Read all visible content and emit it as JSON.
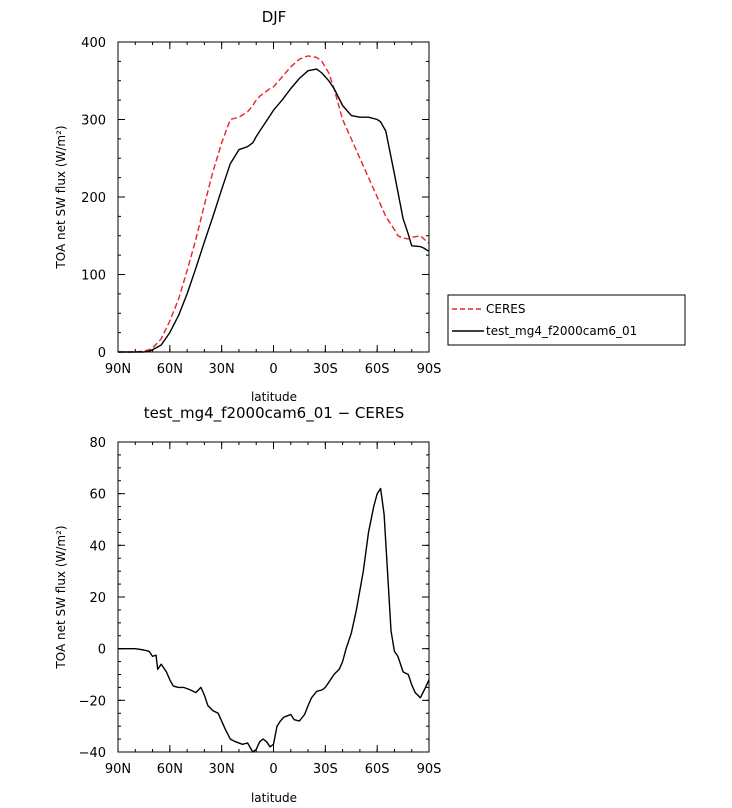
{
  "chart_data": [
    {
      "type": "line",
      "title": "DJF",
      "xlabel": "latitude",
      "ylabel": "TOA net SW flux (W/m²)",
      "xlim": [
        90,
        -90
      ],
      "ylim": [
        0,
        400
      ],
      "x_ticks": [
        90,
        60,
        30,
        0,
        -30,
        -60,
        -90
      ],
      "x_tick_labels": [
        "90N",
        "60N",
        "30N",
        "0",
        "30S",
        "60S",
        "90S"
      ],
      "y_ticks": [
        0,
        100,
        200,
        300,
        400
      ],
      "legend": {
        "placement": "right"
      },
      "series": [
        {
          "name": "CERES",
          "color": "#e8232a",
          "dash": "dashed",
          "x": [
            90,
            80,
            75,
            72,
            70,
            65,
            60,
            55,
            50,
            45,
            40,
            35,
            30,
            25,
            20,
            15,
            12,
            10,
            8,
            5,
            2,
            0,
            -5,
            -10,
            -15,
            -20,
            -25,
            -28,
            -32,
            -35,
            -40,
            -45,
            -50,
            -55,
            -60,
            -65,
            -70,
            -72,
            -75,
            -78,
            -80,
            -85,
            -87,
            -90
          ],
          "y": [
            0,
            0,
            1,
            3,
            5,
            17,
            40,
            68,
            105,
            145,
            190,
            233,
            270,
            300,
            303,
            310,
            318,
            325,
            330,
            335,
            340,
            342,
            355,
            368,
            378,
            382,
            380,
            375,
            360,
            340,
            300,
            275,
            250,
            225,
            200,
            175,
            158,
            150,
            147,
            146,
            148,
            150,
            146,
            140
          ]
        },
        {
          "name": "test_mg4_f2000cam6_01",
          "color": "#000000",
          "dash": "solid",
          "x": [
            90,
            80,
            75,
            72,
            70,
            65,
            60,
            55,
            50,
            45,
            40,
            35,
            30,
            25,
            20,
            15,
            12,
            10,
            8,
            5,
            2,
            0,
            -5,
            -10,
            -15,
            -20,
            -25,
            -28,
            -32,
            -35,
            -40,
            -45,
            -50,
            -55,
            -60,
            -62,
            -65,
            -70,
            -75,
            -78,
            -80,
            -85,
            -87,
            -90
          ],
          "y": [
            0,
            0,
            0,
            1,
            3,
            9,
            25,
            47,
            75,
            108,
            142,
            175,
            210,
            243,
            261,
            265,
            270,
            278,
            285,
            295,
            305,
            312,
            325,
            340,
            353,
            363,
            365,
            360,
            350,
            340,
            318,
            305,
            303,
            303,
            300,
            297,
            285,
            230,
            172,
            152,
            137,
            136,
            134,
            130
          ]
        }
      ]
    },
    {
      "type": "line",
      "title": "test_mg4_f2000cam6_01 − CERES",
      "xlabel": "latitude",
      "ylabel": "TOA net SW flux (W/m²)",
      "xlim": [
        90,
        -90
      ],
      "ylim": [
        -40,
        80
      ],
      "x_ticks": [
        90,
        60,
        30,
        0,
        -30,
        -60,
        -90
      ],
      "x_tick_labels": [
        "90N",
        "60N",
        "30N",
        "0",
        "30S",
        "60S",
        "90S"
      ],
      "y_ticks": [
        -40,
        -20,
        0,
        20,
        40,
        60,
        80
      ],
      "series": [
        {
          "color": "#000000",
          "dash": "solid",
          "x": [
            90,
            80,
            75,
            72,
            70,
            68,
            67,
            65,
            62,
            60,
            58,
            55,
            52,
            48,
            45,
            42,
            40,
            38,
            35,
            32,
            28,
            25,
            22,
            18,
            15,
            12,
            10,
            8,
            6,
            4,
            2,
            0,
            -2,
            -4,
            -6,
            -8,
            -10,
            -12,
            -15,
            -18,
            -20,
            -22,
            -25,
            -28,
            -30,
            -32,
            -35,
            -38,
            -40,
            -42,
            -45,
            -48,
            -52,
            -55,
            -58,
            -60,
            -62,
            -64,
            -66,
            -68,
            -70,
            -72,
            -75,
            -78,
            -80,
            -82,
            -85,
            -88,
            -90
          ],
          "y": [
            0,
            0,
            -0.5,
            -1,
            -3,
            -2.5,
            -8,
            -6,
            -9,
            -12,
            -14.5,
            -15,
            -15,
            -16,
            -17,
            -15,
            -18,
            -22,
            -24,
            -25,
            -31,
            -35,
            -36,
            -37,
            -36.5,
            -40,
            -39,
            -36,
            -35,
            -36,
            -38,
            -37,
            -30,
            -28,
            -26.5,
            -26,
            -25.5,
            -27.5,
            -28,
            -25.5,
            -22,
            -19,
            -16.5,
            -16,
            -15,
            -13,
            -10,
            -8,
            -5,
            0,
            6,
            15,
            30,
            45,
            55,
            60,
            62,
            52,
            30,
            7,
            -1,
            -3,
            -9,
            -10,
            -14,
            -17,
            -19,
            -15,
            -12
          ]
        }
      ]
    }
  ]
}
